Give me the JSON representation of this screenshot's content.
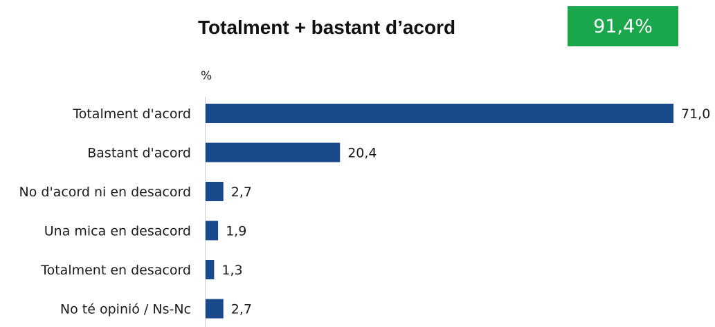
{
  "header": {
    "title": "Totalment + bastant d’acord",
    "summary_value": "91,4%",
    "summary_color": "#1aa64a"
  },
  "chart_data": {
    "type": "bar",
    "orientation": "horizontal",
    "unit_label": "%",
    "categories": [
      "Totalment d'acord",
      "Bastant d'acord",
      "No d'acord ni en desacord",
      "Una mica en desacord",
      "Totalment en desacord",
      "No té opinió / Ns-Nc"
    ],
    "values": [
      71.0,
      20.4,
      2.7,
      1.9,
      1.3,
      2.7
    ],
    "value_labels": [
      "71,0",
      "20,4",
      "2,7",
      "1,9",
      "1,3",
      "2,7"
    ],
    "bar_color": "#1b4a8c",
    "xlim": [
      0,
      71.0
    ],
    "grid": false,
    "legend": "none"
  }
}
